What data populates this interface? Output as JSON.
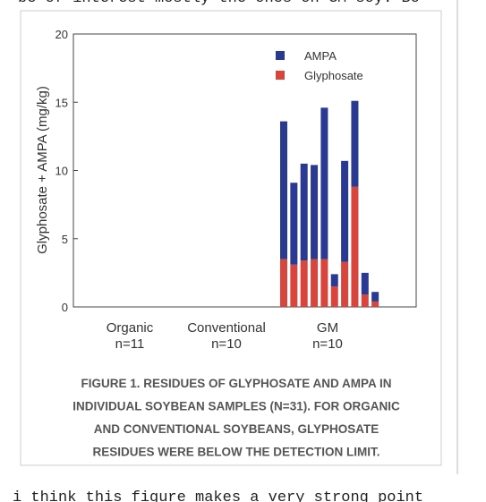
{
  "document": {
    "top_line": "be of interest mostly the ones on GM soy.  Bo",
    "bottom_line": "i think this figure makes a very strong point"
  },
  "chart_data": {
    "type": "stacked_bar",
    "y_label": "Glyphosate + AMPA (mg/kg)",
    "ylim": [
      0,
      20
    ],
    "yticks": [
      0,
      5,
      10,
      15,
      20
    ],
    "groups": [
      {
        "name": "Organic",
        "n": "n=11"
      },
      {
        "name": "Conventional",
        "n": "n=10"
      },
      {
        "name": "GM",
        "n": "n=10"
      }
    ],
    "series": [
      {
        "name": "AMPA",
        "color": "#2a3a92",
        "values": [
          10.1,
          6.0,
          7.1,
          6.9,
          11.1,
          0.9,
          7.4,
          6.3,
          1.6,
          0.7
        ]
      },
      {
        "name": "Glyphosate",
        "color": "#d8453c",
        "values": [
          3.5,
          3.1,
          3.4,
          3.5,
          3.5,
          1.5,
          3.3,
          8.8,
          0.9,
          0.4
        ]
      }
    ],
    "caption": [
      "FIGURE 1. RESIDUES OF GLYPHOSATE AND AMPA IN",
      "INDIVIDUAL SOYBEAN SAMPLES (N=31). FOR ORGANIC",
      "AND CONVENTIONAL SOYBEANS, GLYPHOSATE",
      "RESIDUES WERE BELOW THE DETECTION LIMIT."
    ]
  }
}
